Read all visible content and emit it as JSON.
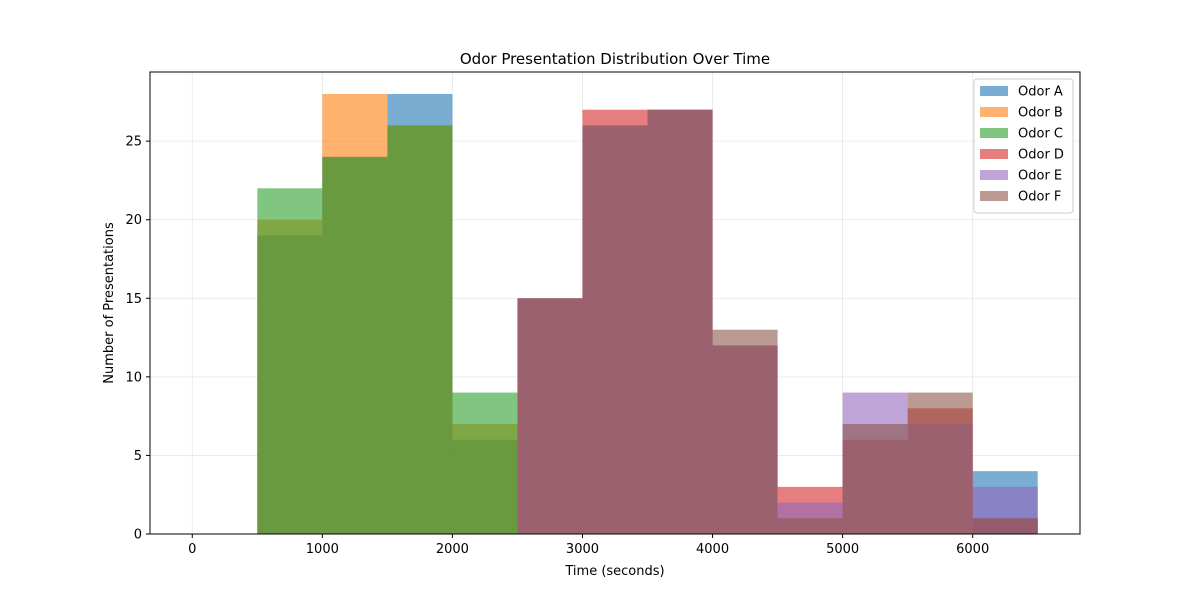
{
  "chart_data": {
    "type": "histogram",
    "title": "Odor Presentation Distribution Over Time",
    "xlabel": "Time (seconds)",
    "ylabel": "Number of Presentations",
    "xlim": [
      -325,
      6825
    ],
    "ylim": [
      0,
      29.4
    ],
    "xticks": [
      0,
      1000,
      2000,
      3000,
      4000,
      5000,
      6000
    ],
    "yticks": [
      0,
      5,
      10,
      15,
      20,
      25
    ],
    "grid": true,
    "legend_position": "top-right",
    "bar_opacity": 0.6,
    "series": [
      {
        "name": "Odor A",
        "color": "#1f77b4",
        "bins": [
          [
            500,
            1000,
            19
          ],
          [
            1000,
            1500,
            24
          ],
          [
            1500,
            2000,
            28
          ],
          [
            2000,
            2500,
            6
          ],
          [
            6000,
            6500,
            4
          ]
        ]
      },
      {
        "name": "Odor B",
        "color": "#ff7f0e",
        "bins": [
          [
            500,
            1000,
            20
          ],
          [
            1000,
            1500,
            28
          ],
          [
            1500,
            2000,
            26
          ],
          [
            2000,
            2500,
            7
          ]
        ]
      },
      {
        "name": "Odor C",
        "color": "#2ca02c",
        "bins": [
          [
            500,
            1000,
            22
          ],
          [
            1000,
            1500,
            24
          ],
          [
            1500,
            2000,
            26
          ],
          [
            2000,
            2500,
            9
          ]
        ]
      },
      {
        "name": "Odor D",
        "color": "#d62728",
        "bins": [
          [
            2500,
            3000,
            15
          ],
          [
            3000,
            3500,
            27
          ],
          [
            3500,
            4000,
            27
          ],
          [
            4000,
            4500,
            12
          ],
          [
            4500,
            5000,
            3
          ],
          [
            5000,
            5500,
            6
          ],
          [
            5500,
            6000,
            8
          ],
          [
            6000,
            6500,
            1
          ]
        ]
      },
      {
        "name": "Odor E",
        "color": "#9467bd",
        "bins": [
          [
            2500,
            3000,
            15
          ],
          [
            3000,
            3500,
            26
          ],
          [
            3500,
            4000,
            27
          ],
          [
            4000,
            4500,
            12
          ],
          [
            4500,
            5000,
            2
          ],
          [
            5000,
            5500,
            9
          ],
          [
            5500,
            6000,
            7
          ],
          [
            6000,
            6500,
            3
          ]
        ]
      },
      {
        "name": "Odor F",
        "color": "#8c564b",
        "bins": [
          [
            2500,
            3000,
            15
          ],
          [
            3000,
            3500,
            26
          ],
          [
            3500,
            4000,
            27
          ],
          [
            4000,
            4500,
            13
          ],
          [
            4500,
            5000,
            1
          ],
          [
            5000,
            5500,
            7
          ],
          [
            5500,
            6000,
            9
          ],
          [
            6000,
            6500,
            1
          ]
        ]
      }
    ]
  }
}
